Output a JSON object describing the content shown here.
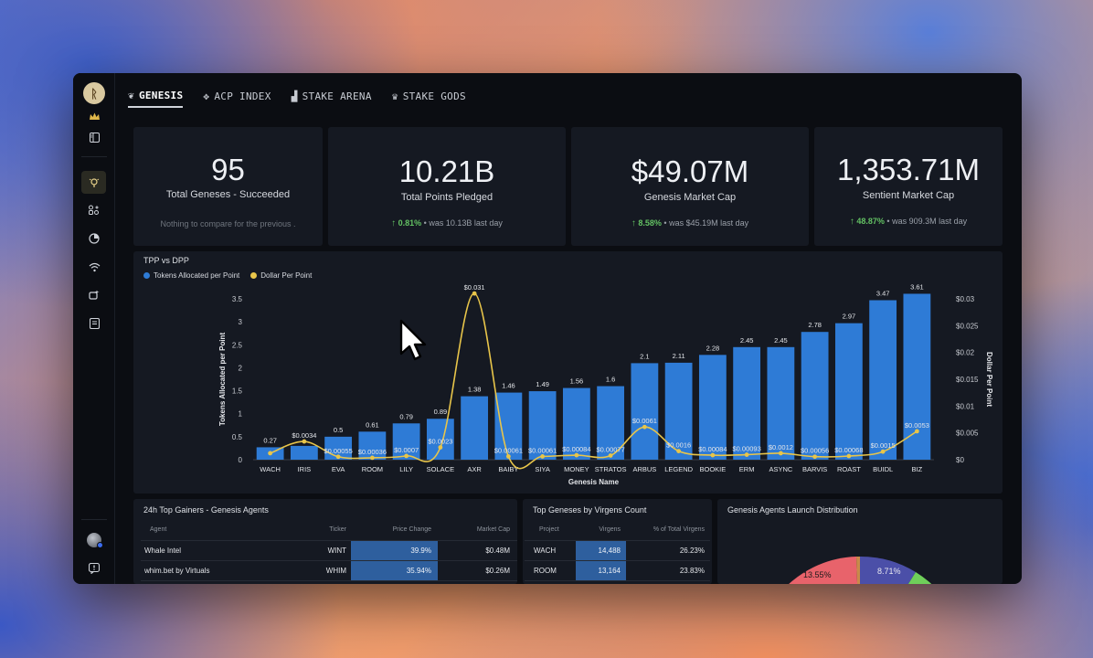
{
  "sidebar": {
    "logo": "ᚱ",
    "icons": [
      "crown-icon",
      "panel-icon",
      "bulb-icon",
      "sparkle-grid-icon",
      "chart-radar-icon",
      "wifi-icon",
      "repeat-icon",
      "book-icon"
    ],
    "help_icon": "!"
  },
  "tabs": [
    {
      "label": "GENESIS",
      "icon": "❦",
      "active": true
    },
    {
      "label": "ACP INDEX",
      "icon": "✥",
      "active": false
    },
    {
      "label": "STAKE ARENA",
      "icon": "▟",
      "active": false
    },
    {
      "label": "STAKE GODS",
      "icon": "♛",
      "active": false
    }
  ],
  "kpis": [
    {
      "value": "95",
      "label": "Total Geneses - Succeeded",
      "note": "Nothing to compare for the previous ."
    },
    {
      "value": "10.21B",
      "label": "Total Points Pledged",
      "change": "0.81%",
      "was": "• was 10.13B  last day"
    },
    {
      "value": "$49.07M",
      "label": "Genesis Market Cap",
      "change": "8.58%",
      "was": "• was $45.19M  last day"
    },
    {
      "value": "1,353.71M",
      "label": "Sentient Market Cap",
      "change": "48.87%",
      "was": "• was 909.3M  last day"
    }
  ],
  "chart": {
    "title": "TPP vs DPP",
    "legend": [
      "Tokens Allocated per Point",
      "Dollar Per Point"
    ],
    "colors": {
      "bar": "#2e7bd6",
      "line": "#e8c54a",
      "text": "#e4e6ea",
      "axis": "#c9ccd2"
    }
  },
  "chart_data": {
    "type": "bar",
    "title": "TPP vs DPP",
    "xlabel": "Genesis Name",
    "ylabel": "Tokens Allocated per Point",
    "y2label": "Dollar Per Point",
    "categories": [
      "WACH",
      "IRIS",
      "EVA",
      "ROOM",
      "LILY",
      "SOLACE",
      "AXR",
      "BAIBY",
      "SIYA",
      "MONEY",
      "STRATOS",
      "ARBUS",
      "LEGEND",
      "BOOKIE",
      "ERM",
      "ASYNC",
      "BARVIS",
      "ROAST",
      "BUIDL",
      "BIZ"
    ],
    "ylim": [
      0,
      3.5
    ],
    "yticks": [
      "0",
      "0.5",
      "1",
      "1.5",
      "2",
      "2.5",
      "3",
      "3.5"
    ],
    "y2lim": [
      0,
      0.03
    ],
    "y2ticks": [
      "$0",
      "$0.005",
      "$0.01",
      "$0.015",
      "$0.02",
      "$0.025",
      "$0.03"
    ],
    "series": [
      {
        "name": "Tokens Allocated per Point",
        "values": [
          0.27,
          0.3,
          0.5,
          0.61,
          0.79,
          0.89,
          1.38,
          1.46,
          1.49,
          1.56,
          1.6,
          2.1,
          2.11,
          2.28,
          2.45,
          2.45,
          2.78,
          2.97,
          3.47,
          3.61
        ],
        "labels": [
          "0.27",
          "",
          "0.5",
          "0.61",
          "0.79",
          "0.89",
          "1.38",
          "1.46",
          "1.49",
          "1.56",
          "1.6",
          "2.1",
          "2.11",
          "2.28",
          "2.45",
          "2.45",
          "2.78",
          "2.97",
          "3.47",
          "3.61"
        ]
      },
      {
        "name": "Dollar Per Point",
        "values": [
          0.0012,
          0.0034,
          0.00055,
          0.00036,
          0.0007,
          0.0023,
          0.031,
          0.00061,
          0.00061,
          0.00084,
          0.00077,
          0.0061,
          0.0016,
          0.00084,
          0.00093,
          0.0012,
          0.00056,
          0.00068,
          0.0015,
          0.0053
        ],
        "labels": [
          "",
          "$0.0034",
          "$0.00055",
          "$0.00036",
          "$0.0007",
          "$0.0023",
          "$0.031",
          "$0.00061",
          "$0.00061",
          "$0.00084",
          "$0.00077",
          "$0.0061",
          "$0.0016",
          "$0.00084",
          "$0.00093",
          "$0.0012",
          "$0.00056",
          "$0.00068",
          "$0.0015",
          "$0.0053"
        ]
      }
    ]
  },
  "gainers": {
    "title": "24h Top Gainers - Genesis Agents",
    "headers": [
      "Agent",
      "Ticker",
      "Price Change",
      "Market Cap"
    ],
    "rows": [
      [
        "Whale Intel",
        "WINT",
        "39.9%",
        "$0.48M"
      ],
      [
        "whim.bet by Virtuals",
        "WHIM",
        "35.94%",
        "$0.26M"
      ]
    ]
  },
  "virgens": {
    "title": "Top Geneses by Virgens Count",
    "headers": [
      "Project",
      "Virgens",
      "% of Total Virgens"
    ],
    "rows": [
      [
        "WACH",
        "14,488",
        "26.23%"
      ],
      [
        "ROOM",
        "13,164",
        "23.83%"
      ]
    ]
  },
  "launch": {
    "title": "Genesis Agents Launch Distribution",
    "slices": [
      {
        "label": "13.55%",
        "color": "#e8636b"
      },
      {
        "label": "8.71%",
        "color": "#4b4fa8"
      },
      {
        "label": "",
        "color": "#6fcf5a"
      },
      {
        "label": "",
        "color": "#c98a4a"
      }
    ]
  }
}
